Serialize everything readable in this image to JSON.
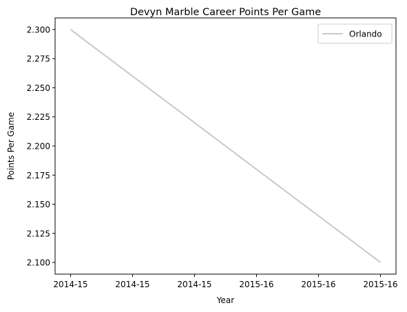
{
  "chart_data": {
    "type": "line",
    "title": "Devyn Marble Career Points Per Game",
    "xlabel": "Year",
    "ylabel": "Points Per Game",
    "x_tick_labels": [
      "2014-15",
      "2014-15",
      "2014-15",
      "2015-16",
      "2015-16",
      "2015-16"
    ],
    "x": [
      "2014-15",
      "2015-16"
    ],
    "series": [
      {
        "name": "Orlando",
        "values": [
          2.3,
          2.1
        ],
        "color": "#c0cad3"
      }
    ],
    "y_ticks": [
      "2.100",
      "2.125",
      "2.150",
      "2.175",
      "2.200",
      "2.225",
      "2.250",
      "2.275",
      "2.300"
    ],
    "ylim": [
      2.09,
      2.31
    ],
    "grid": false,
    "legend_position": "top-right"
  }
}
